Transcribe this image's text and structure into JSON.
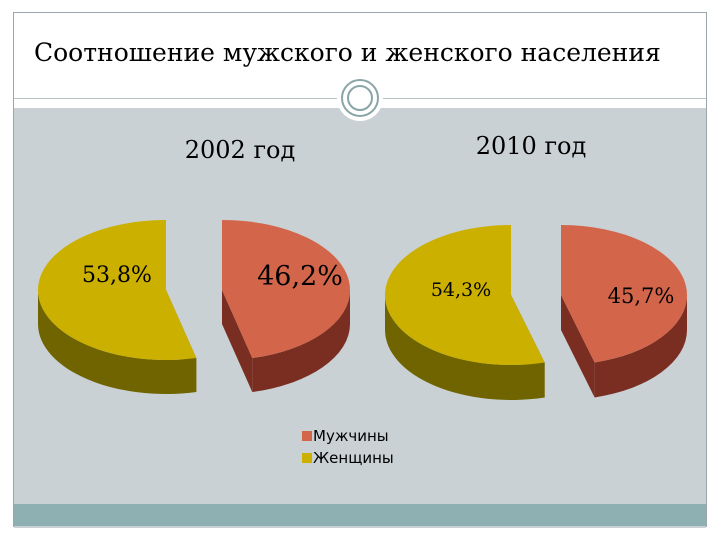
{
  "slide": {
    "title": "Соотношение мужского и женского населения"
  },
  "colors": {
    "men": "#d2654a",
    "men_side": "#7a2e22",
    "women": "#ccb000",
    "women_side": "#6f6400",
    "background": "#c9d1d4",
    "band": "#8fb0b3"
  },
  "chart_data": [
    {
      "type": "pie",
      "title": "2002 год",
      "series": [
        {
          "name": "Мужчины",
          "value": 46.2,
          "label": "46,2%"
        },
        {
          "name": "Женщины",
          "value": 53.8,
          "label": "53,8%"
        }
      ]
    },
    {
      "type": "pie",
      "title": "2010 год",
      "series": [
        {
          "name": "Мужчины",
          "value": 45.7,
          "label": "45,7%"
        },
        {
          "name": "Женщины",
          "value": 54.3,
          "label": "54,3%"
        }
      ]
    }
  ],
  "legend": {
    "items": [
      {
        "label": "Мужчины",
        "color_key": "men"
      },
      {
        "label": "Женщины",
        "color_key": "women"
      }
    ]
  }
}
